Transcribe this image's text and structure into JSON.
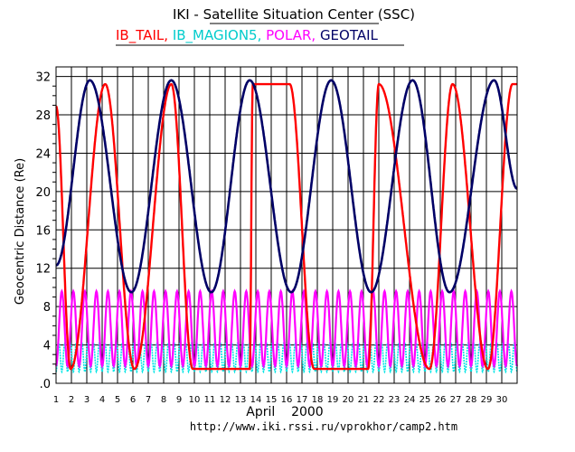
{
  "chart_data": {
    "type": "line",
    "title": "IKI - Satellite Situation Center (SSC)",
    "ylabel": "Geocentric Distance (Re)",
    "xlabel": "April    2000",
    "x_range": [
      1,
      31
    ],
    "ylim": [
      0,
      33
    ],
    "grid": true,
    "x_ticks": [
      "1",
      "2",
      "3",
      "4",
      "5",
      "6",
      "7",
      "8",
      "9",
      "10",
      "11",
      "12",
      "13",
      "14",
      "15",
      "16",
      "17",
      "18",
      "19",
      "20",
      "21",
      "22",
      "23",
      "24",
      "25",
      "26",
      "27",
      "28",
      "29",
      "30"
    ],
    "y_ticks": [
      ".0",
      "4",
      "8",
      "12",
      "16",
      "20",
      "24",
      "28",
      "32"
    ],
    "y_tick_values": [
      0,
      4,
      8,
      12,
      16,
      20,
      24,
      28,
      32
    ],
    "legend_position": "top (under title)",
    "series": [
      {
        "name": "IB_TAIL",
        "color": "#ff0000",
        "apogee_days": [
          4.2,
          8.5,
          13.8,
          16.2,
          22.0,
          26.8,
          30.7
        ],
        "perigee_days": [
          1.95,
          6.1,
          9.9,
          13.6,
          17.8,
          21.3,
          25.3,
          29.1
        ],
        "apogee_re": 31.2,
        "perigee_re": 1.5
      },
      {
        "name": "IB_MAGION5",
        "color": "#00e5e5",
        "period_days": 0.375,
        "min_re": 1.2,
        "max_re": 4.2
      },
      {
        "name": "POLAR",
        "color": "#ff00ff",
        "period_days": 0.75,
        "min_re": 1.8,
        "max_re": 9.6
      },
      {
        "name": "GEOTAIL",
        "color": "#000066",
        "apogee_days": [
          3.2,
          8.5,
          13.6,
          18.9,
          24.2,
          29.5
        ],
        "perigee_days": [
          5.9,
          11.1,
          16.3,
          21.5,
          26.6
        ],
        "apogee_re": 31.6,
        "perigee_re": 9.5,
        "start_re": 12.3,
        "end_re": 20.3
      }
    ],
    "footer_url": "http://www.iki.rssi.ru/vprokhor/camp2.htm"
  }
}
